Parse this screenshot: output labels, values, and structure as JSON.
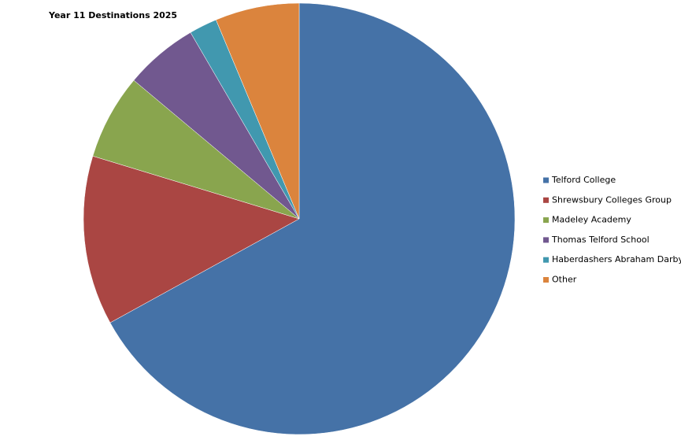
{
  "chart_data": {
    "type": "pie",
    "title": "Year 11 Destinations 2025",
    "categories": [
      "Telford College",
      "Shrewsbury Colleges Group",
      "Madeley Academy",
      "Thomas Telford School",
      "Haberdashers Abraham Darby",
      "Other"
    ],
    "values": [
      67,
      12.7,
      6.4,
      5.5,
      2.1,
      6.3
    ],
    "colors": [
      "#4572a7",
      "#aa4643",
      "#89a54e",
      "#71588f",
      "#4198af",
      "#db843d"
    ],
    "legend": "right"
  }
}
